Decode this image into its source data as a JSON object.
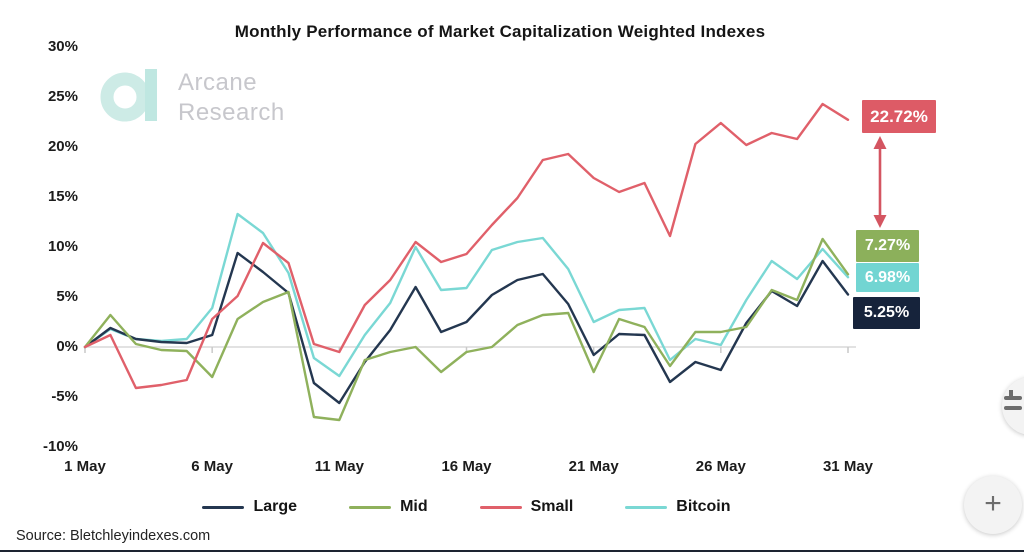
{
  "header": {
    "title": "Monthly Performance of Market Capitalization Weighted Indexes"
  },
  "watermark": {
    "line1": "Arcane",
    "line2": "Research",
    "logo_color": "#c9eae5"
  },
  "chart_data": {
    "type": "line",
    "title": "Monthly Performance of Market Capitalization Weighted Indexes",
    "xlabel": "",
    "ylabel": "",
    "ylim": [
      -10,
      30
    ],
    "grid": "zero-baseline-only",
    "legend_position": "bottom",
    "x_unit": "day of May",
    "x": [
      1,
      2,
      3,
      4,
      5,
      6,
      7,
      8,
      9,
      10,
      11,
      12,
      13,
      14,
      15,
      16,
      17,
      18,
      19,
      20,
      21,
      22,
      23,
      24,
      25,
      26,
      27,
      28,
      29,
      30,
      31
    ],
    "x_tick_days": [
      1,
      6,
      11,
      16,
      21,
      26,
      31
    ],
    "x_tick_labels": [
      "1 May",
      "6 May",
      "11 May",
      "16 May",
      "21 May",
      "26 May",
      "31 May"
    ],
    "y_tick_values": [
      30,
      25,
      20,
      15,
      10,
      5,
      0,
      -5,
      -10
    ],
    "y_tick_labels": [
      "30%",
      "25%",
      "20%",
      "15%",
      "10%",
      "5%",
      "0%",
      "-5%",
      "-10%"
    ],
    "axis_color": "#d9d9d9",
    "series": [
      {
        "name": "Large",
        "color": "#243750",
        "end_label": "5.25%",
        "end_label_bg": "#16233b",
        "final_value": 5.25,
        "values": [
          0,
          1.9,
          0.8,
          0.5,
          0.4,
          1.2,
          9.4,
          7.5,
          5.4,
          -3.6,
          -5.6,
          -1.5,
          1.7,
          6.0,
          1.5,
          2.5,
          5.2,
          6.7,
          7.3,
          4.3,
          -0.8,
          1.3,
          1.2,
          -3.5,
          -1.5,
          -2.3,
          2.4,
          5.6,
          4.1,
          8.6,
          5.25
        ]
      },
      {
        "name": "Mid",
        "color": "#8fb15c",
        "end_label": "7.27%",
        "end_label_bg": "#8cb05b",
        "final_value": 7.27,
        "values": [
          0,
          3.2,
          0.3,
          -0.3,
          -0.4,
          -3.0,
          2.8,
          4.5,
          5.5,
          -7.0,
          -7.3,
          -1.3,
          -0.5,
          0.0,
          -2.5,
          -0.5,
          0.0,
          2.2,
          3.2,
          3.4,
          -2.5,
          2.8,
          2.0,
          -1.9,
          1.5,
          1.5,
          2.0,
          5.7,
          4.7,
          10.8,
          7.27
        ]
      },
      {
        "name": "Small",
        "color": "#e0606a",
        "end_label": "22.72%",
        "end_label_bg": "#dd5b66",
        "final_value": 22.72,
        "values": [
          0,
          1.2,
          -4.1,
          -3.8,
          -3.3,
          2.8,
          5.1,
          10.4,
          8.4,
          0.3,
          -0.5,
          4.2,
          6.7,
          10.5,
          8.5,
          9.3,
          12.2,
          14.9,
          18.7,
          19.3,
          16.9,
          15.5,
          16.4,
          11.1,
          20.3,
          22.4,
          20.2,
          21.4,
          20.8,
          24.3,
          22.72
        ]
      },
      {
        "name": "Bitcoin",
        "color": "#7ad8d4",
        "end_label": "6.98%",
        "end_label_bg": "#72d5d2",
        "final_value": 6.98,
        "values": [
          0,
          1.8,
          0.8,
          0.6,
          0.8,
          3.9,
          13.3,
          11.4,
          7.4,
          -1.1,
          -2.9,
          1.2,
          4.4,
          10.0,
          5.7,
          5.9,
          9.7,
          10.5,
          10.9,
          7.8,
          2.5,
          3.7,
          3.9,
          -1.3,
          0.8,
          0.2,
          4.7,
          8.6,
          6.8,
          9.8,
          6.98
        ]
      }
    ],
    "annotation_arrow": {
      "between": [
        "22.72%",
        "7.27%"
      ],
      "color": "#d45561"
    }
  },
  "footer": {
    "source": "Source: Bletchleyindexes.com"
  },
  "floating_buttons": {
    "top_icon": "adjust-sliders",
    "bottom_icon": "plus",
    "plus_glyph": "+"
  }
}
